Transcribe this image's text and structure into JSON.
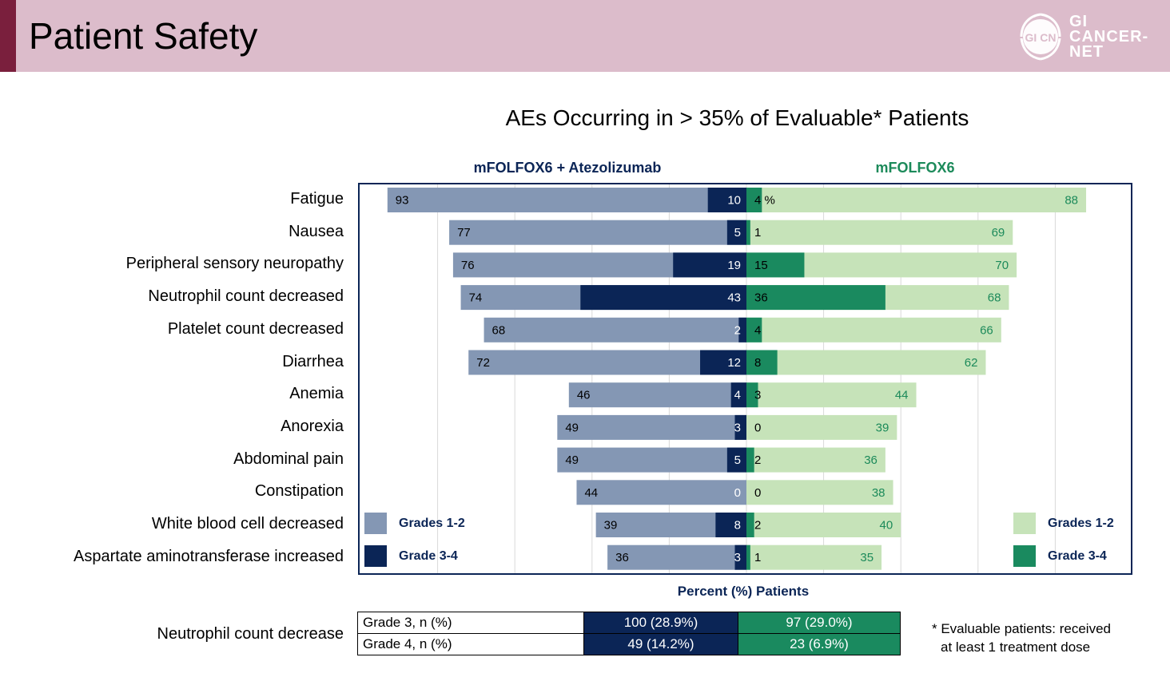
{
  "header": {
    "title": "Patient Safety",
    "logo_badge": "GI CN",
    "logo_text": [
      "GI",
      "CANCER-",
      "NET"
    ]
  },
  "colors": {
    "left_grade12": "#8497b4",
    "left_grade34": "#0b2556",
    "right_grade12": "#c6e3b9",
    "right_grade34": "#1a8a5f",
    "frame": "#0b2556"
  },
  "chart_data": {
    "type": "bar",
    "orientation": "horizontal-diverging",
    "title": "AEs Occurring in > 35% of Evaluable* Patients",
    "xlabel": "Percent (%) Patients",
    "xlim": [
      -100,
      100
    ],
    "grid": true,
    "left_arm": "mFOLFOX6 + Atezolizumab",
    "right_arm": "mFOLFOX6",
    "legend": [
      {
        "arm": "left",
        "labels": [
          "Grades 1-2",
          "Grade 3-4"
        ]
      },
      {
        "arm": "right",
        "labels": [
          "Grades 1-2",
          "Grade 3-4"
        ]
      }
    ],
    "unit_annotation": "%",
    "categories": [
      "Fatigue",
      "Nausea",
      "Peripheral sensory neuropathy",
      "Neutrophil count decreased",
      "Platelet count decreased",
      "Diarrhea",
      "Anemia",
      "Anorexia",
      "Abdominal pain",
      "Constipation",
      "White blood cell decreased",
      "Aspartate aminotransferase increased"
    ],
    "series": [
      {
        "name": "mFOLFOX6 + Atezolizumab Grades 1-2",
        "values": [
          93,
          77,
          76,
          74,
          68,
          72,
          46,
          49,
          49,
          44,
          39,
          36
        ]
      },
      {
        "name": "mFOLFOX6 + Atezolizumab Grade 3-4",
        "values": [
          10,
          5,
          19,
          43,
          2,
          12,
          4,
          3,
          5,
          0,
          8,
          3
        ]
      },
      {
        "name": "mFOLFOX6 Grade 3-4",
        "values": [
          4,
          1,
          15,
          36,
          4,
          8,
          3,
          0,
          2,
          0,
          2,
          1
        ]
      },
      {
        "name": "mFOLFOX6 Grades 1-2",
        "values": [
          88,
          69,
          70,
          68,
          66,
          62,
          44,
          39,
          36,
          38,
          40,
          35
        ]
      }
    ]
  },
  "neutrophil_table": {
    "label": "Neutrophil count decrease",
    "rows": [
      {
        "grade": "Grade 3, n (%)",
        "left": "100 (28.9%)",
        "right": "97 (29.0%)"
      },
      {
        "grade": "Grade 4, n (%)",
        "left": "49 (14.2%)",
        "right": "23 (6.9%)"
      }
    ]
  },
  "footnote": [
    "* Evaluable patients: received",
    "at least 1 treatment dose"
  ]
}
